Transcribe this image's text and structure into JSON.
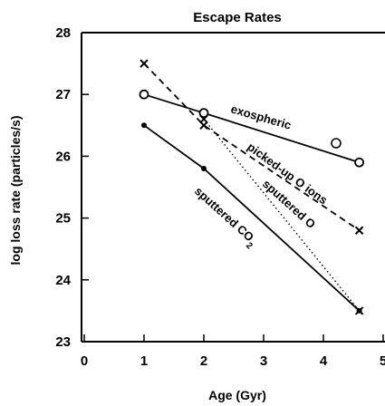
{
  "chart_data": {
    "type": "line",
    "title": "Escape Rates",
    "xlabel": "Age (Gyr)",
    "ylabel": "log loss rate (particles/s)",
    "xlim": [
      0,
      5
    ],
    "ylim": [
      23,
      28
    ],
    "xticks": [
      0,
      1,
      2,
      3,
      4,
      5
    ],
    "yticks": [
      23,
      24,
      25,
      26,
      27,
      28
    ],
    "grid": false,
    "series": [
      {
        "name": "exospheric O",
        "label_text": "exospheric",
        "label_symbol": "O",
        "style": "solid",
        "marker": "o",
        "x": [
          1,
          2,
          4.6
        ],
        "y": [
          27.0,
          26.7,
          25.9
        ]
      },
      {
        "name": "picked-up O ions",
        "label_text": "picked-up O ions",
        "style": "dashed",
        "marker": "x",
        "x": [
          1,
          2,
          4.6
        ],
        "y": [
          27.5,
          26.5,
          24.8
        ]
      },
      {
        "name": "sputtered O",
        "label_text": "sputtered O",
        "style": "dotted",
        "marker": "x",
        "x": [
          2,
          4.6
        ],
        "y": [
          26.6,
          23.5
        ]
      },
      {
        "name": "sputtered CO2",
        "label_text": "sputtered CO",
        "label_subscript": "2",
        "style": "solid",
        "marker": "dot",
        "x": [
          1,
          2,
          4.6
        ],
        "y": [
          26.5,
          25.8,
          23.5
        ]
      }
    ]
  }
}
